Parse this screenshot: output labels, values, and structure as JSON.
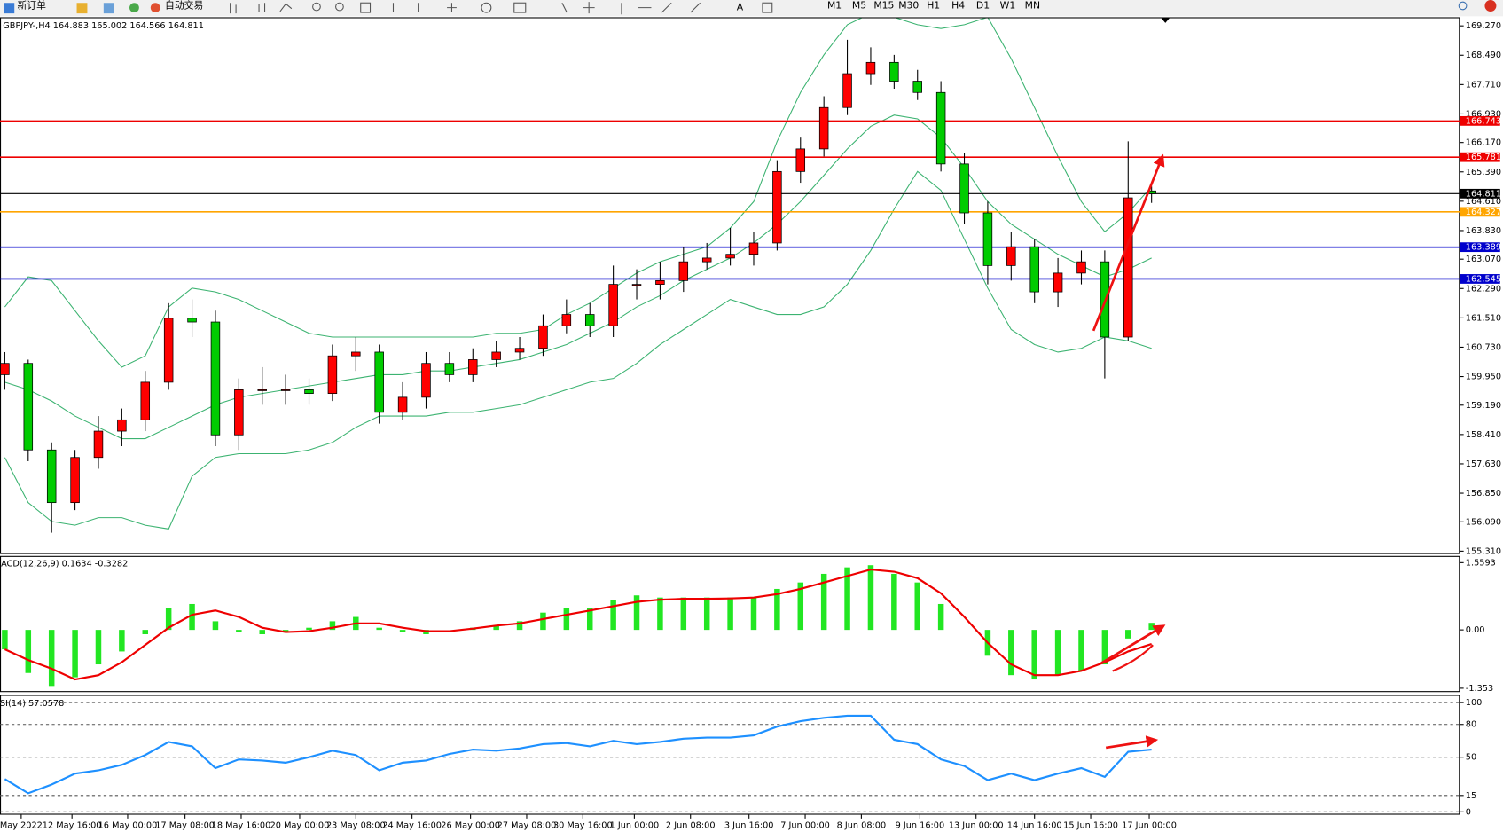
{
  "toolbar": {
    "buttons": [
      "新订单",
      "自动交易"
    ],
    "timeframes": [
      "M1",
      "M5",
      "M15",
      "M30",
      "H1",
      "H4",
      "D1",
      "W1",
      "MN"
    ]
  },
  "chart_data": [
    {
      "type": "candlestick",
      "title": "GBPJPY-,H4 164.883 165.002 164.566 164.811",
      "open": [
        160.0,
        160.3,
        158.0,
        156.6,
        157.8,
        158.5,
        158.8,
        159.8,
        161.5,
        161.4,
        158.4,
        159.6,
        159.6,
        159.6,
        159.5,
        160.5,
        160.6,
        159.0,
        159.4,
        160.3,
        160.0,
        160.4,
        160.6,
        160.7,
        161.3,
        161.6,
        161.3,
        162.4,
        162.4,
        162.5,
        163.0,
        163.1,
        163.2,
        163.5,
        165.4,
        166.0,
        167.1,
        168.0,
        168.3,
        167.8,
        167.5,
        165.6,
        164.3,
        162.9,
        163.4,
        162.2,
        162.7,
        163.0,
        161.0,
        164.883
      ],
      "high": [
        160.6,
        160.4,
        158.2,
        158.0,
        158.9,
        159.1,
        160.1,
        161.9,
        162.0,
        161.7,
        159.9,
        160.2,
        160.0,
        159.9,
        160.8,
        161.0,
        160.8,
        159.8,
        160.6,
        160.6,
        160.7,
        160.9,
        161.0,
        161.6,
        162.0,
        161.9,
        162.9,
        162.8,
        163.0,
        163.4,
        163.5,
        163.9,
        163.8,
        165.7,
        166.3,
        167.4,
        168.9,
        168.7,
        168.5,
        168.1,
        167.8,
        165.9,
        164.6,
        163.8,
        163.6,
        163.1,
        163.3,
        163.3,
        166.2,
        165.002
      ],
      "low": [
        159.6,
        157.7,
        155.8,
        156.4,
        157.5,
        158.1,
        158.5,
        159.6,
        161.0,
        158.1,
        158.0,
        159.2,
        159.2,
        159.2,
        159.3,
        160.1,
        158.7,
        158.8,
        159.1,
        159.8,
        159.8,
        160.2,
        160.4,
        160.5,
        161.1,
        161.0,
        161.0,
        162.0,
        162.0,
        162.2,
        162.8,
        162.9,
        162.9,
        163.3,
        165.1,
        165.8,
        166.9,
        167.7,
        167.6,
        167.3,
        165.4,
        164.0,
        162.4,
        162.5,
        161.9,
        161.8,
        162.4,
        159.9,
        160.9,
        164.566
      ],
      "close": [
        160.3,
        158.0,
        156.6,
        157.8,
        158.5,
        158.8,
        159.8,
        161.5,
        161.4,
        158.4,
        159.6,
        159.6,
        159.6,
        159.5,
        160.5,
        160.6,
        159.0,
        159.4,
        160.3,
        160.0,
        160.4,
        160.6,
        160.7,
        161.3,
        161.6,
        161.3,
        162.4,
        162.4,
        162.5,
        163.0,
        163.1,
        163.2,
        163.5,
        165.4,
        166.0,
        167.1,
        168.0,
        168.3,
        167.8,
        167.5,
        165.6,
        164.3,
        162.9,
        163.4,
        162.2,
        162.7,
        163.0,
        161.0,
        164.7,
        164.811
      ],
      "up_color": "#ff0000",
      "down_color": "#00cc00",
      "bands": {
        "color": "#3cb371",
        "upper": [
          161.8,
          162.6,
          162.5,
          161.7,
          160.9,
          160.2,
          160.5,
          161.8,
          162.3,
          162.2,
          162.0,
          161.7,
          161.4,
          161.1,
          161.0,
          161.0,
          161.0,
          161.0,
          161.0,
          161.0,
          161.0,
          161.1,
          161.1,
          161.2,
          161.6,
          161.9,
          162.3,
          162.7,
          163.0,
          163.2,
          163.4,
          163.9,
          164.6,
          166.2,
          167.5,
          168.5,
          169.3,
          169.6,
          169.5,
          169.3,
          169.2,
          169.3,
          169.5,
          168.4,
          167.1,
          165.8,
          164.6,
          163.8,
          164.3,
          165.0
        ],
        "middle": [
          159.8,
          159.6,
          159.3,
          158.9,
          158.6,
          158.3,
          158.3,
          158.6,
          158.9,
          159.2,
          159.4,
          159.5,
          159.6,
          159.7,
          159.8,
          159.9,
          160.0,
          160.0,
          160.1,
          160.1,
          160.2,
          160.3,
          160.4,
          160.6,
          160.8,
          161.1,
          161.4,
          161.8,
          162.1,
          162.5,
          162.8,
          163.1,
          163.5,
          164.0,
          164.6,
          165.3,
          166.0,
          166.6,
          166.9,
          166.8,
          166.3,
          165.5,
          164.6,
          164.0,
          163.6,
          163.2,
          162.9,
          162.6,
          162.8,
          163.1
        ],
        "lower": [
          157.8,
          156.6,
          156.1,
          156.0,
          156.2,
          156.2,
          156.0,
          155.9,
          157.3,
          157.8,
          157.9,
          157.9,
          157.9,
          158.0,
          158.2,
          158.6,
          158.9,
          158.9,
          158.9,
          159.0,
          159.0,
          159.1,
          159.2,
          159.4,
          159.6,
          159.8,
          159.9,
          160.3,
          160.8,
          161.2,
          161.6,
          162.0,
          161.8,
          161.6,
          161.6,
          161.8,
          162.4,
          163.3,
          164.4,
          165.4,
          164.9,
          163.6,
          162.3,
          161.2,
          160.8,
          160.6,
          160.7,
          161.0,
          160.9,
          160.7
        ]
      },
      "levels": [
        {
          "value": 166.743,
          "color": "#ee0000"
        },
        {
          "value": 165.781,
          "color": "#ee0000"
        },
        {
          "value": 164.811,
          "color": "#000000"
        },
        {
          "value": 164.327,
          "color": "#ffa500"
        },
        {
          "value": 163.389,
          "color": "#0000cc"
        },
        {
          "value": 162.545,
          "color": "#0000cc"
        }
      ],
      "ylim": [
        155.31,
        169.27
      ],
      "yticks": [
        {
          "value": 169.27,
          "label": "169.270"
        },
        {
          "value": 168.49,
          "label": "168.490"
        },
        {
          "value": 167.71,
          "label": "167.710"
        },
        {
          "value": 166.93,
          "label": "166.930"
        },
        {
          "value": 166.17,
          "label": "166.170"
        },
        {
          "value": 165.39,
          "label": "165.390"
        },
        {
          "value": 164.61,
          "label": "164.610"
        },
        {
          "value": 163.83,
          "label": "163.830"
        },
        {
          "value": 163.07,
          "label": "163.070"
        },
        {
          "value": 162.29,
          "label": "162.290"
        },
        {
          "value": 161.51,
          "label": "161.510"
        },
        {
          "value": 160.73,
          "label": "160.730"
        },
        {
          "value": 159.95,
          "label": "159.950"
        },
        {
          "value": 159.19,
          "label": "159.190"
        },
        {
          "value": 158.41,
          "label": "158.410"
        },
        {
          "value": 157.63,
          "label": "157.630"
        },
        {
          "value": 156.85,
          "label": "156.850"
        },
        {
          "value": 156.09,
          "label": "156.090"
        },
        {
          "value": 155.31,
          "label": "155.310"
        }
      ],
      "xticks": [
        {
          "value": 0.7,
          "label": "May 2022"
        },
        {
          "value": 2.87,
          "label": "12 May 16:00"
        },
        {
          "value": 5.25,
          "label": "16 May 00:00"
        },
        {
          "value": 7.7,
          "label": "17 May 08:00"
        },
        {
          "value": 10.1,
          "label": "18 May 16:00"
        },
        {
          "value": 12.6,
          "label": "20 May 00:00"
        },
        {
          "value": 15.0,
          "label": "23 May 08:00"
        },
        {
          "value": 17.4,
          "label": "24 May 16:00"
        },
        {
          "value": 19.9,
          "label": "26 May 00:00"
        },
        {
          "value": 22.3,
          "label": "27 May 08:00"
        },
        {
          "value": 24.7,
          "label": "30 May 16:00"
        },
        {
          "value": 26.9,
          "label": "1 Jun 00:00"
        },
        {
          "value": 29.3,
          "label": "2 Jun 08:00"
        },
        {
          "value": 31.8,
          "label": "3 Jun 16:00"
        },
        {
          "value": 34.2,
          "label": "7 Jun 00:00"
        },
        {
          "value": 36.6,
          "label": "8 Jun 08:00"
        },
        {
          "value": 39.1,
          "label": "9 Jun 16:00"
        },
        {
          "value": 41.5,
          "label": "13 Jun 00:00"
        },
        {
          "value": 44.0,
          "label": "14 Jun 16:00"
        },
        {
          "value": 46.4,
          "label": "15 Jun 16:00"
        },
        {
          "value": 48.9,
          "label": "17 Jun 00:00"
        }
      ]
    },
    {
      "type": "bar",
      "title": "ACD(12,26,9) 0.1634 -0.3282",
      "color": "#22e622",
      "values": [
        -0.45,
        -1.0,
        -1.3,
        -1.1,
        -0.8,
        -0.5,
        -0.1,
        0.5,
        0.6,
        0.2,
        -0.05,
        -0.1,
        -0.05,
        0.05,
        0.2,
        0.3,
        0.05,
        -0.05,
        -0.1,
        0.0,
        0.05,
        0.1,
        0.2,
        0.4,
        0.5,
        0.5,
        0.7,
        0.8,
        0.75,
        0.75,
        0.75,
        0.75,
        0.75,
        0.95,
        1.1,
        1.3,
        1.45,
        1.5,
        1.3,
        1.1,
        0.6,
        0.0,
        -0.6,
        -1.05,
        -1.15,
        -1.05,
        -0.95,
        -0.8,
        -0.2,
        0.1634
      ],
      "line": {
        "color": "#ee0000",
        "values": [
          -0.45,
          -0.7,
          -0.9,
          -1.15,
          -1.05,
          -0.75,
          -0.35,
          0.05,
          0.35,
          0.45,
          0.3,
          0.05,
          -0.05,
          -0.03,
          0.05,
          0.15,
          0.15,
          0.05,
          -0.03,
          -0.03,
          0.03,
          0.1,
          0.15,
          0.25,
          0.35,
          0.45,
          0.55,
          0.65,
          0.7,
          0.72,
          0.72,
          0.73,
          0.75,
          0.83,
          0.95,
          1.1,
          1.25,
          1.4,
          1.35,
          1.2,
          0.85,
          0.3,
          -0.3,
          -0.8,
          -1.05,
          -1.05,
          -0.95,
          -0.75,
          -0.5,
          -0.3282
        ]
      },
      "ylim": [
        -1.353,
        1.5593
      ],
      "yticks": [
        1.5593,
        {
          "value": 0,
          "label": "0.00"
        },
        -1.353
      ]
    },
    {
      "type": "line",
      "title": "SI(14) 57.0578",
      "color": "#1e90ff",
      "values": [
        30,
        17,
        25,
        35,
        38,
        43,
        52,
        64,
        60,
        40,
        48,
        47,
        45,
        50,
        56,
        52,
        38,
        45,
        47,
        53,
        57,
        56,
        58,
        62,
        63,
        60,
        65,
        62,
        64,
        67,
        68,
        68,
        70,
        78,
        83,
        86,
        88,
        88,
        66,
        62,
        48,
        42,
        29,
        35,
        29,
        35,
        40,
        32,
        55,
        57.0578
      ],
      "ylim": [
        0,
        100
      ],
      "yticks": [
        100,
        80,
        50,
        15,
        0
      ],
      "grid": "dashed"
    }
  ]
}
